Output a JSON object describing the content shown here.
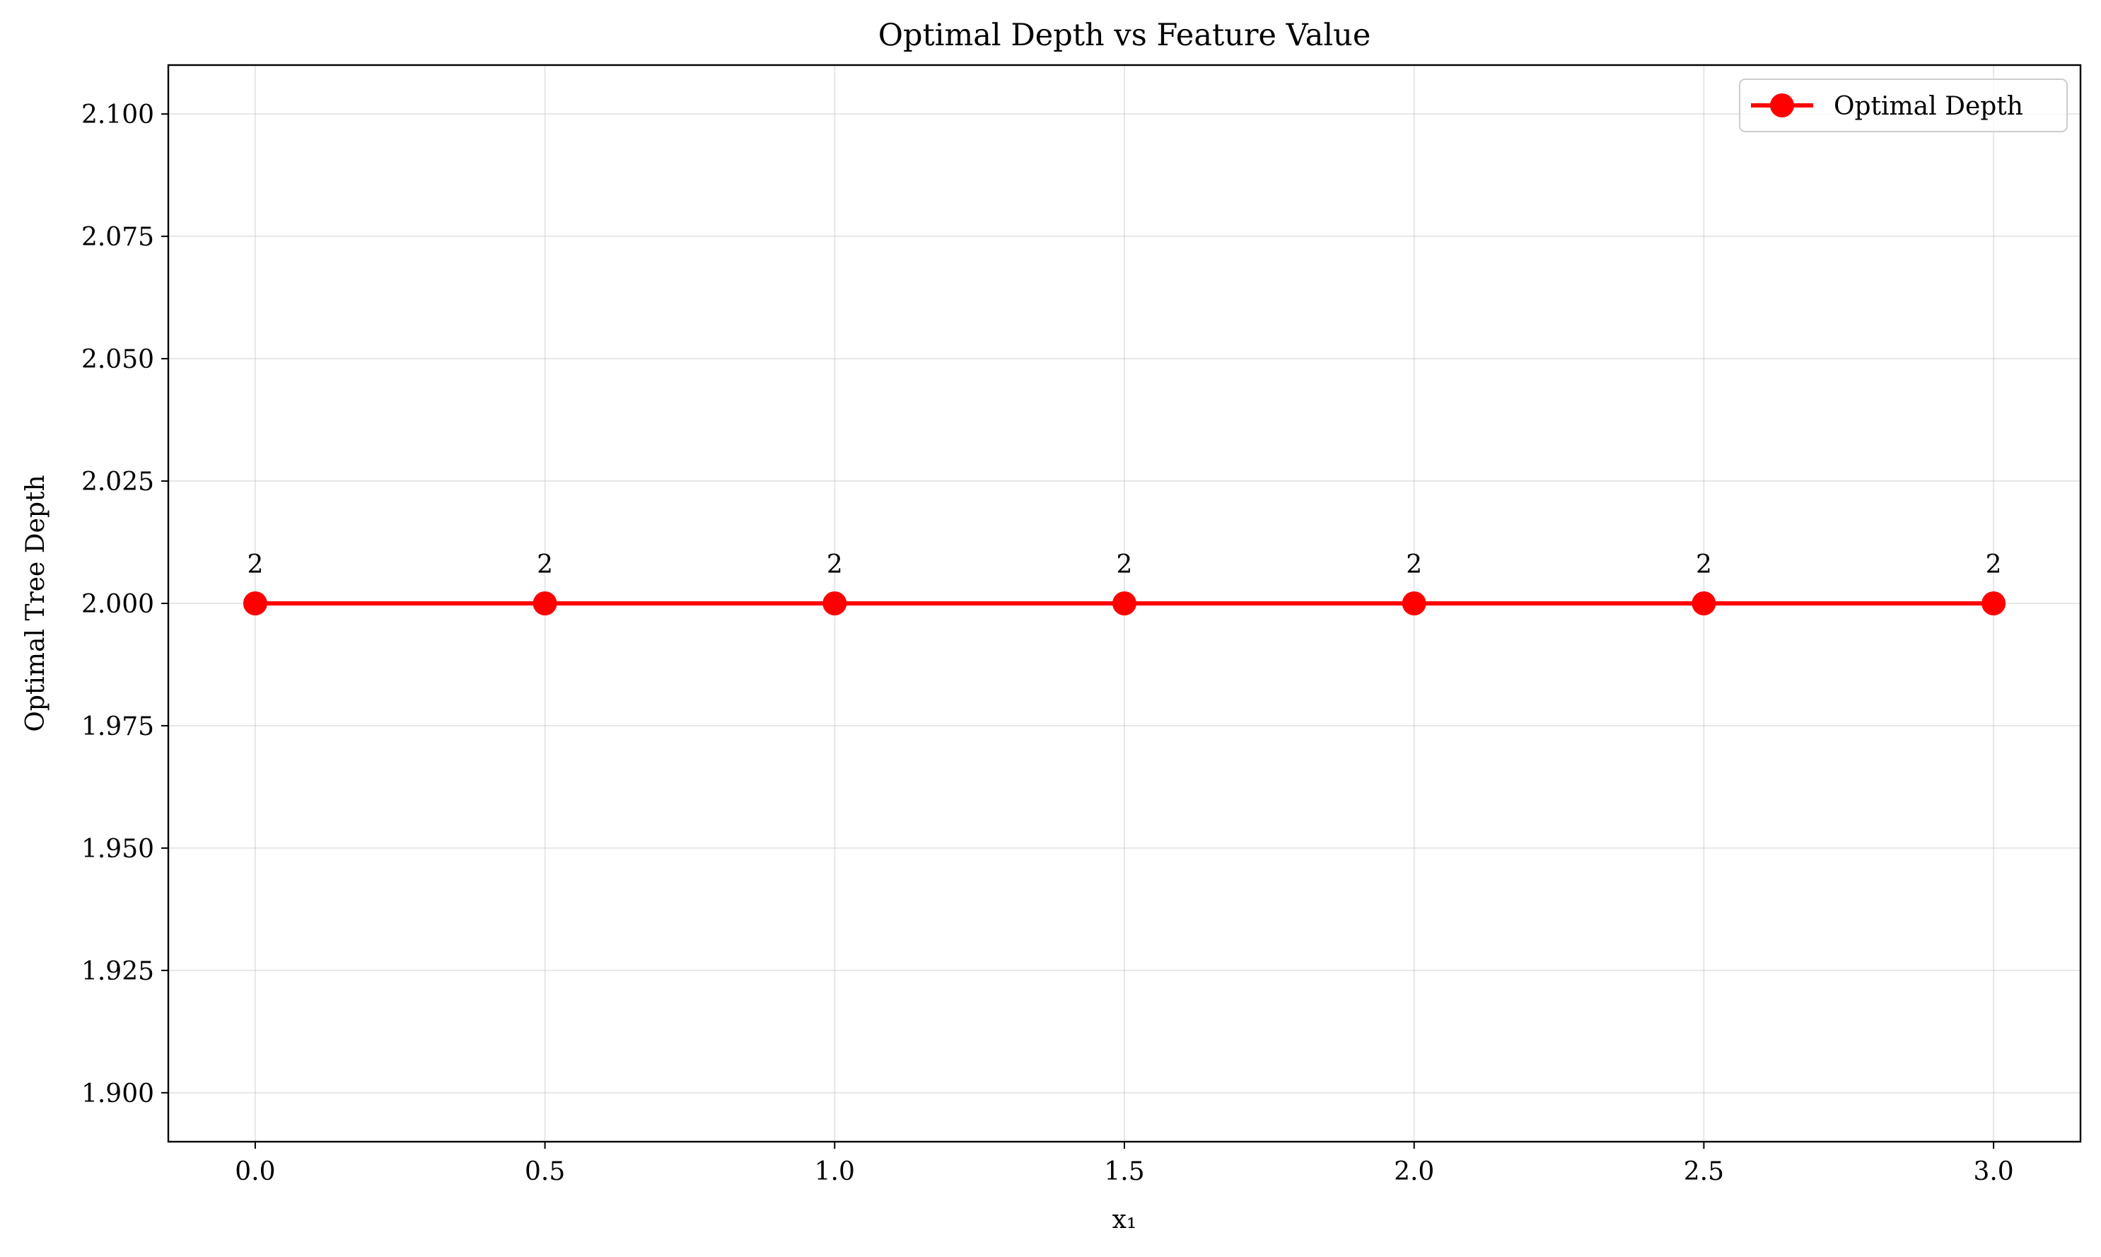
{
  "chart_data": {
    "type": "line",
    "title": "Optimal Depth vs Feature Value",
    "xlabel": "x₁",
    "ylabel": "Optimal Tree Depth",
    "xlim": [
      -0.15,
      3.15
    ],
    "ylim": [
      1.89,
      2.11
    ],
    "x_ticks": [
      0.0,
      0.5,
      1.0,
      1.5,
      2.0,
      2.5,
      3.0
    ],
    "x_tick_labels": [
      "0.0",
      "0.5",
      "1.0",
      "1.5",
      "2.0",
      "2.5",
      "3.0"
    ],
    "y_ticks": [
      1.9,
      1.925,
      1.95,
      1.975,
      2.0,
      2.025,
      2.05,
      2.075,
      2.1
    ],
    "y_tick_labels": [
      "1.900",
      "1.925",
      "1.950",
      "1.975",
      "2.000",
      "2.025",
      "2.050",
      "2.075",
      "2.100"
    ],
    "grid": true,
    "legend_position": "top-right",
    "series": [
      {
        "name": "Optimal Depth",
        "color": "#ff0000",
        "marker": "circle",
        "x": [
          0.0,
          0.5,
          1.0,
          1.5,
          2.0,
          2.5,
          3.0
        ],
        "y": [
          2,
          2,
          2,
          2,
          2,
          2,
          2
        ],
        "data_labels": [
          "2",
          "2",
          "2",
          "2",
          "2",
          "2",
          "2"
        ]
      }
    ]
  }
}
